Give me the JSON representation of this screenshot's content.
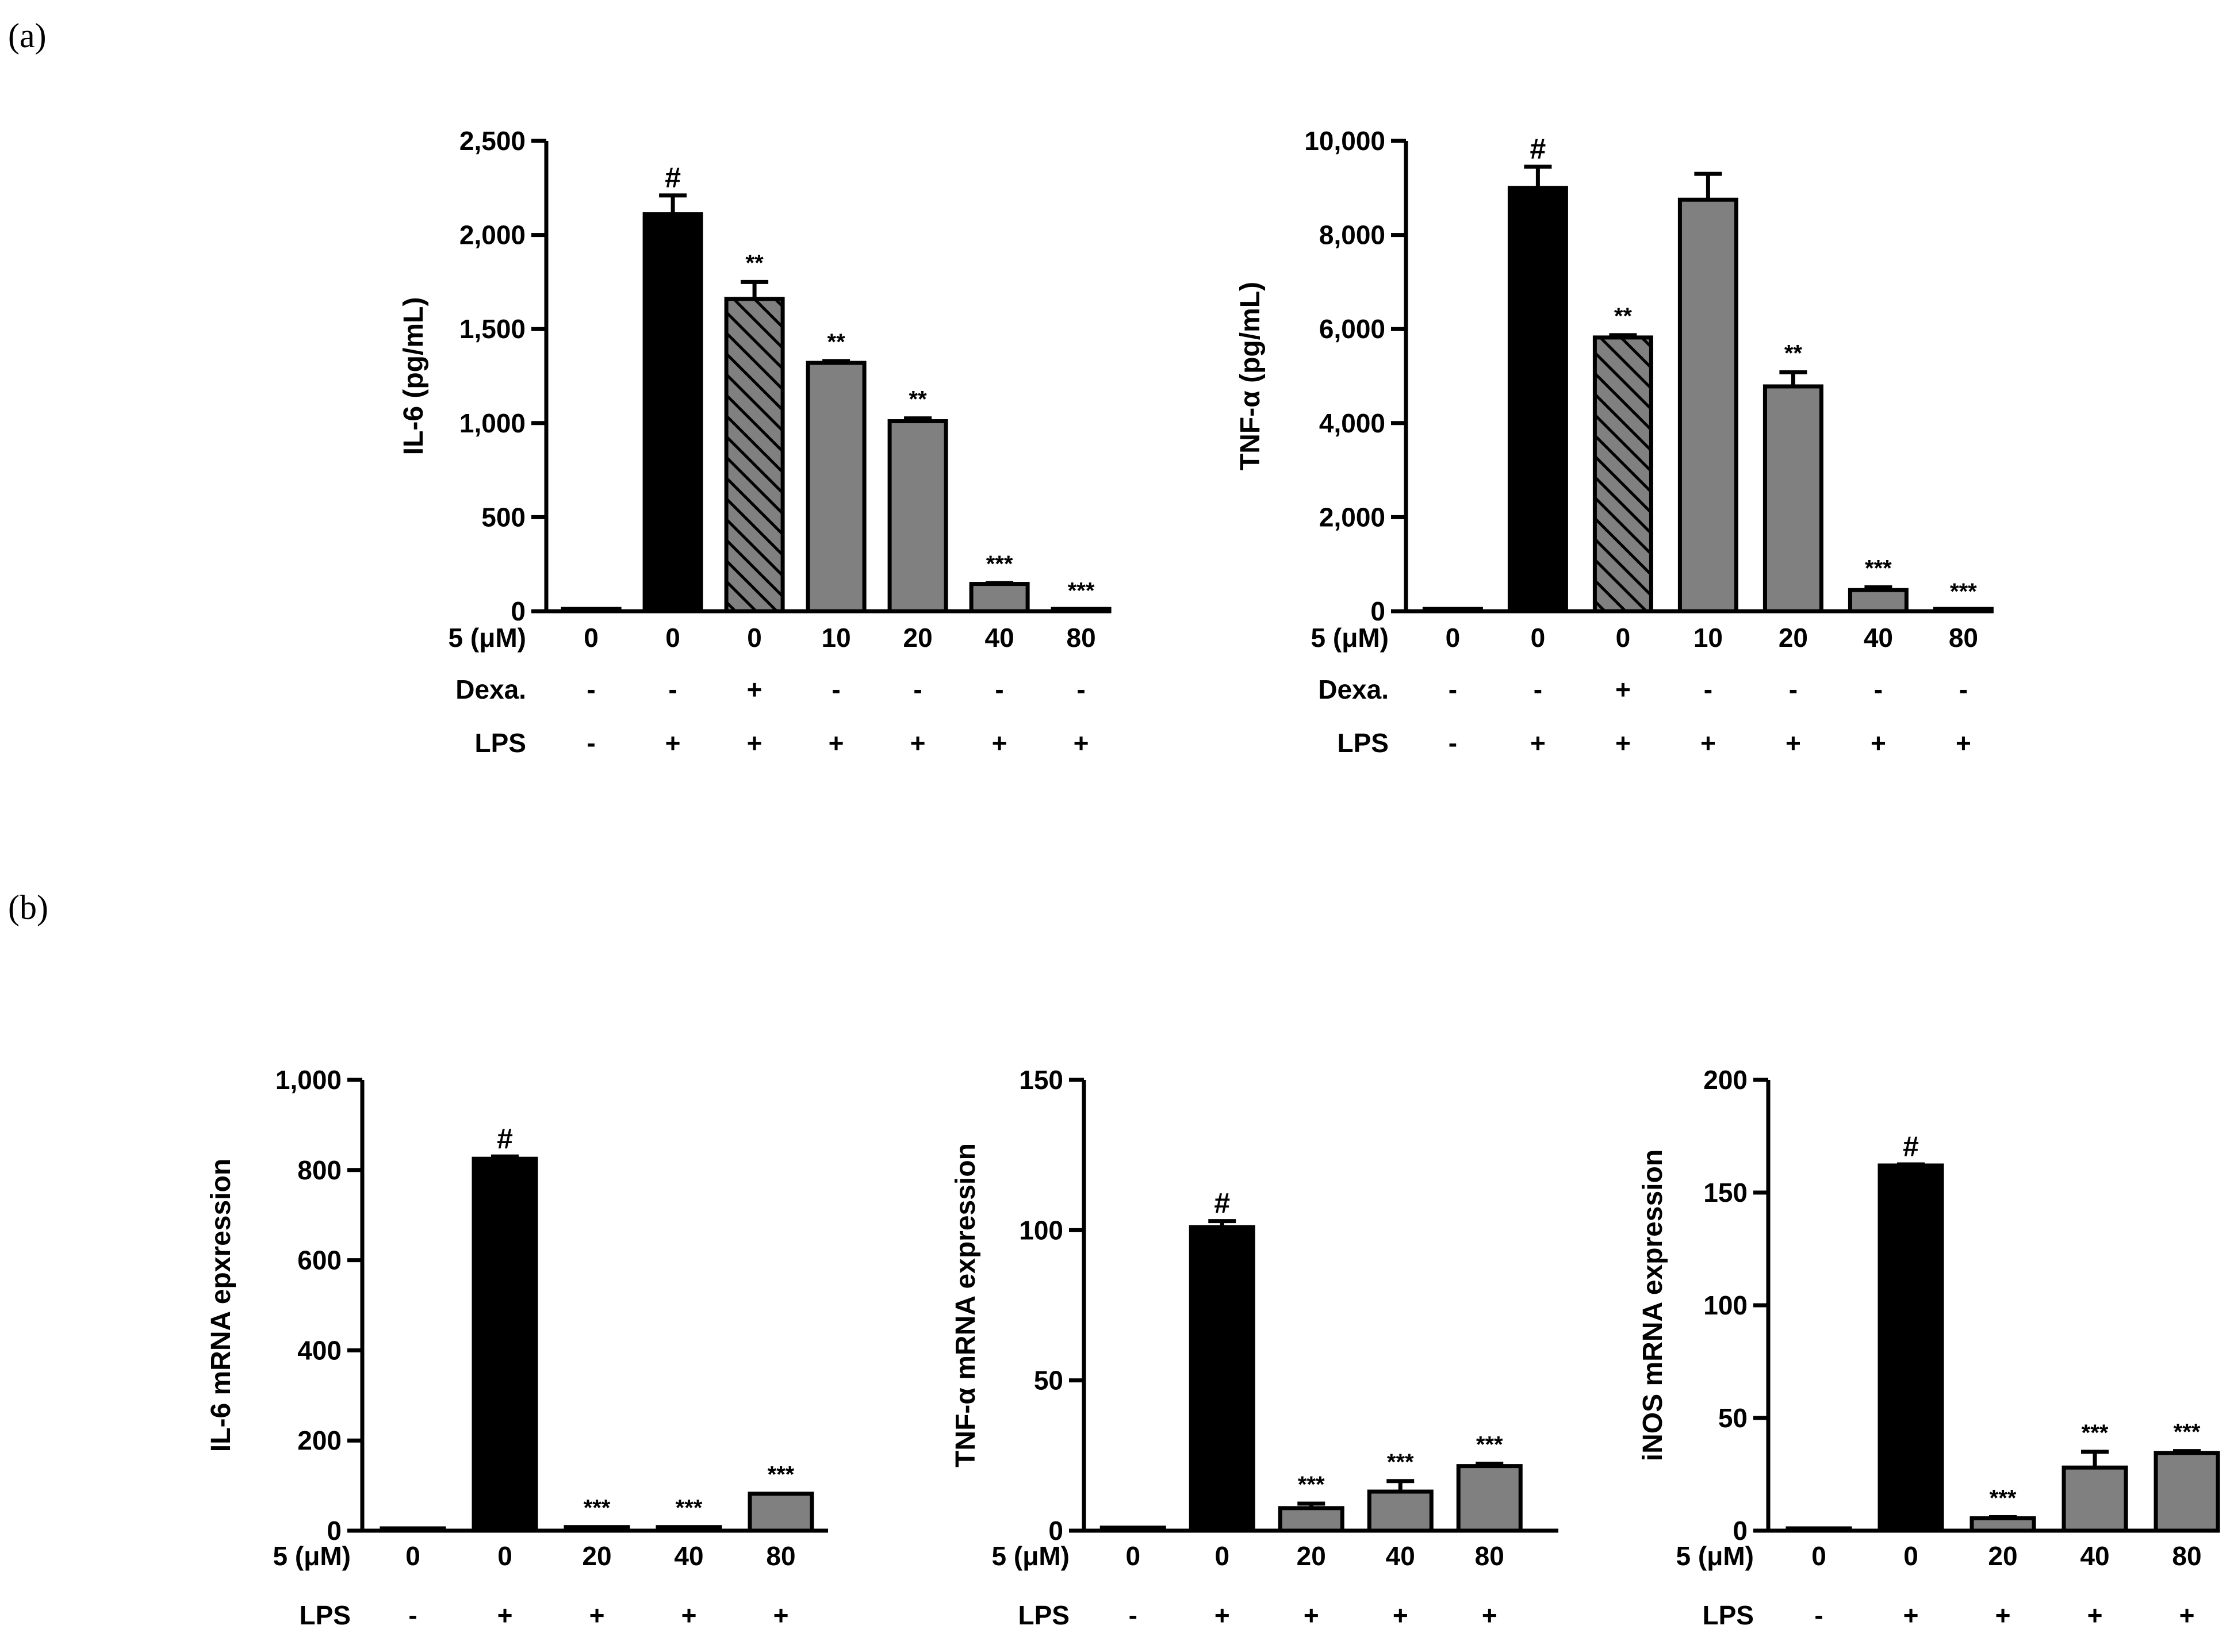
{
  "panels": [
    {
      "label": "(a)"
    },
    {
      "label": "(b)"
    }
  ],
  "colors": {
    "black": "#000000",
    "gray": "#808080",
    "white": "#ffffff"
  },
  "chart_data": [
    {
      "type": "bar",
      "panel": "(a)",
      "ylabel": "IL-6 (pg/mL)",
      "ylim": [
        0,
        2500
      ],
      "yticks": [
        0,
        500,
        1000,
        1500,
        2000,
        2500
      ],
      "ytick_labels": [
        "0",
        "500",
        "1,000",
        "1,500",
        "2,000",
        "2,500"
      ],
      "rows": [
        {
          "label": "5 (μM)",
          "values": [
            "0",
            "0",
            "0",
            "10",
            "20",
            "40",
            "80"
          ]
        },
        {
          "label": "Dexa.",
          "values": [
            "-",
            "-",
            "+",
            "-",
            "-",
            "-",
            "-"
          ]
        },
        {
          "label": "LPS",
          "values": [
            "-",
            "+",
            "+",
            "+",
            "+",
            "+",
            "+"
          ]
        }
      ],
      "values": [
        0,
        2110,
        1660,
        1320,
        1010,
        145,
        8
      ],
      "errors": [
        0,
        100,
        90,
        10,
        15,
        5,
        0
      ],
      "fills": [
        "gray",
        "black",
        "hatch",
        "gray",
        "gray",
        "gray",
        "gray"
      ],
      "annotations": [
        "",
        "#",
        "**",
        "**",
        "**",
        "***",
        "***"
      ]
    },
    {
      "type": "bar",
      "panel": "(a)",
      "ylabel": "TNF-α (pg/mL)",
      "ylim": [
        0,
        10000
      ],
      "yticks": [
        0,
        2000,
        4000,
        6000,
        8000,
        10000
      ],
      "ytick_labels": [
        "0",
        "2,000",
        "4,000",
        "6,000",
        "8,000",
        "10,000"
      ],
      "rows": [
        {
          "label": "5 (μM)",
          "values": [
            "0",
            "0",
            "0",
            "10",
            "20",
            "40",
            "80"
          ]
        },
        {
          "label": "Dexa.",
          "values": [
            "-",
            "-",
            "+",
            "-",
            "-",
            "-",
            "-"
          ]
        },
        {
          "label": "LPS",
          "values": [
            "-",
            "+",
            "+",
            "+",
            "+",
            "+",
            "+"
          ]
        }
      ],
      "values": [
        30,
        9000,
        5820,
        8750,
        4780,
        450,
        10
      ],
      "errors": [
        0,
        450,
        50,
        550,
        300,
        60,
        0
      ],
      "fills": [
        "gray",
        "black",
        "hatch",
        "gray",
        "gray",
        "gray",
        "gray"
      ],
      "annotations": [
        "",
        "#",
        "**",
        "",
        "**",
        "***",
        "***"
      ]
    },
    {
      "type": "bar",
      "panel": "(b)",
      "ylabel": "IL-6 mRNA epxression",
      "ylim": [
        0,
        1000
      ],
      "yticks": [
        0,
        200,
        400,
        600,
        800,
        1000
      ],
      "ytick_labels": [
        "0",
        "200",
        "400",
        "600",
        "800",
        "1,000"
      ],
      "rows": [
        {
          "label": "5 (μM)",
          "values": [
            "0",
            "0",
            "20",
            "40",
            "80"
          ]
        },
        {
          "label": "LPS",
          "values": [
            "-",
            "+",
            "+",
            "+",
            "+"
          ]
        }
      ],
      "values": [
        2,
        825,
        8,
        8,
        82
      ],
      "errors": [
        0,
        5,
        0,
        0,
        0
      ],
      "fills": [
        "gray",
        "black",
        "gray",
        "gray",
        "gray"
      ],
      "annotations": [
        "",
        "#",
        "***",
        "***",
        "***"
      ]
    },
    {
      "type": "bar",
      "panel": "(b)",
      "ylabel": "TNF-α mRNA expression",
      "ylim": [
        0,
        150
      ],
      "yticks": [
        0,
        50,
        100,
        150
      ],
      "ytick_labels": [
        "0",
        "50",
        "100",
        "150"
      ],
      "rows": [
        {
          "label": "5 (μM)",
          "values": [
            "0",
            "0",
            "20",
            "40",
            "80"
          ]
        },
        {
          "label": "LPS",
          "values": [
            "-",
            "+",
            "+",
            "+",
            "+"
          ]
        }
      ],
      "values": [
        1,
        101,
        7.5,
        13,
        21.5
      ],
      "errors": [
        0,
        2,
        1.5,
        3.5,
        0.8
      ],
      "fills": [
        "gray",
        "black",
        "gray",
        "gray",
        "gray"
      ],
      "annotations": [
        "",
        "#",
        "***",
        "***",
        "***"
      ]
    },
    {
      "type": "bar",
      "panel": "(b)",
      "ylabel": "iNOS mRNA expression",
      "ylim": [
        0,
        200
      ],
      "yticks": [
        0,
        50,
        100,
        150,
        200
      ],
      "ytick_labels": [
        "0",
        "50",
        "100",
        "150",
        "200"
      ],
      "rows": [
        {
          "label": "5 (μM)",
          "values": [
            "0",
            "0",
            "20",
            "40",
            "80"
          ]
        },
        {
          "label": "LPS",
          "values": [
            "-",
            "+",
            "+",
            "+",
            "+"
          ]
        }
      ],
      "values": [
        1,
        162,
        5.5,
        28,
        34.5
      ],
      "errors": [
        0,
        0.5,
        0.5,
        7,
        0.8
      ],
      "fills": [
        "gray",
        "black",
        "gray",
        "gray",
        "gray"
      ],
      "annotations": [
        "",
        "#",
        "***",
        "***",
        "***"
      ]
    }
  ]
}
